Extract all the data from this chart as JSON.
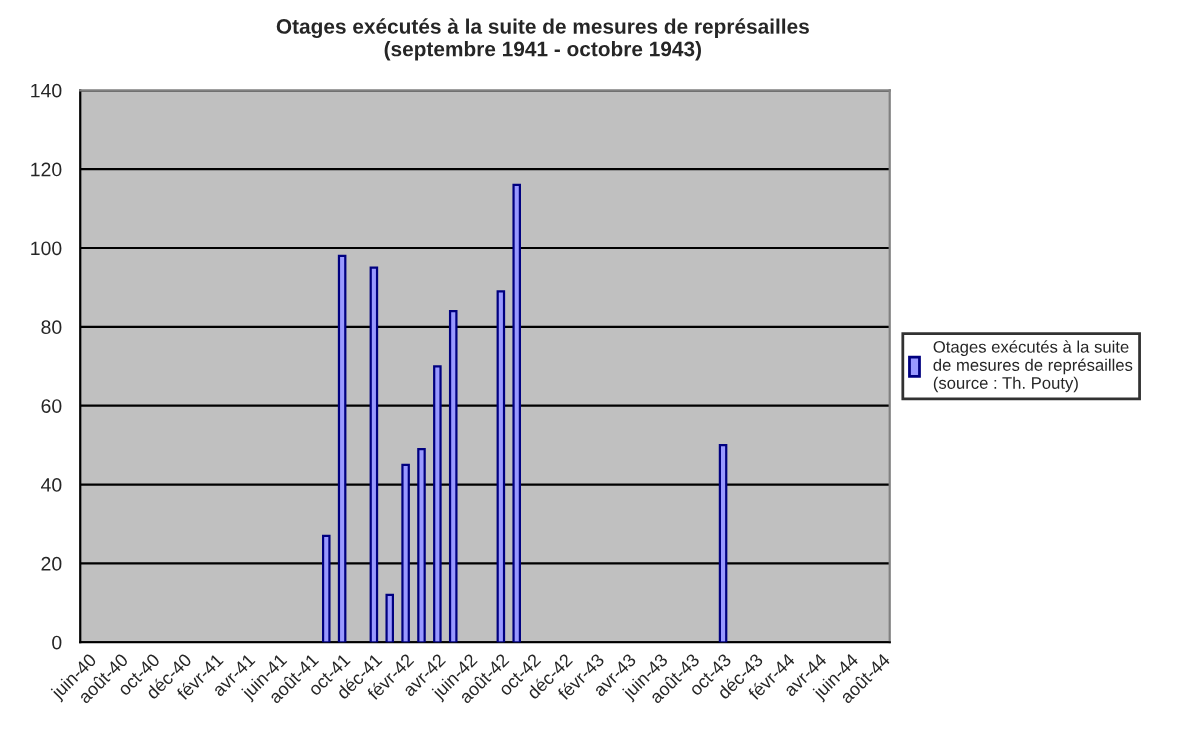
{
  "chart_data": {
    "type": "bar",
    "title": "Otages exécutés à la suite de mesures de représailles\n(septembre 1941 - octobre 1943)",
    "categories": [
      "juin-40",
      null,
      "août-40",
      null,
      "oct-40",
      null,
      "déc-40",
      null,
      "févr-41",
      null,
      "avr-41",
      null,
      "juin-41",
      null,
      "août-41",
      null,
      "oct-41",
      null,
      "déc-41",
      null,
      "févr-42",
      null,
      "avr-42",
      null,
      "juin-42",
      null,
      "août-42",
      null,
      "oct-42",
      null,
      "déc-42",
      null,
      "févr-43",
      null,
      "avr-43",
      null,
      "juin-43",
      null,
      "août-43",
      null,
      "oct-43",
      null,
      "déc-43",
      null,
      "févr-44",
      null,
      "avr-44",
      null,
      "juin-44",
      null,
      "août-44"
    ],
    "series": [
      {
        "name": "Otages exécutés à la suite de mesures de représailles (source : Th. Pouty)",
        "color": "#9999ff",
        "values": [
          null,
          null,
          null,
          null,
          null,
          null,
          null,
          null,
          null,
          null,
          null,
          null,
          null,
          null,
          null,
          27,
          98,
          null,
          95,
          12,
          45,
          49,
          70,
          84,
          null,
          null,
          89,
          116,
          null,
          null,
          null,
          null,
          null,
          null,
          null,
          null,
          null,
          null,
          null,
          null,
          50,
          null,
          null,
          null,
          null,
          null,
          null,
          null,
          null,
          null,
          null
        ]
      }
    ],
    "ylim": [
      0,
      140
    ],
    "yticks": [
      0,
      20,
      40,
      60,
      80,
      100,
      120,
      140
    ],
    "grid": "y",
    "legend": "right"
  }
}
